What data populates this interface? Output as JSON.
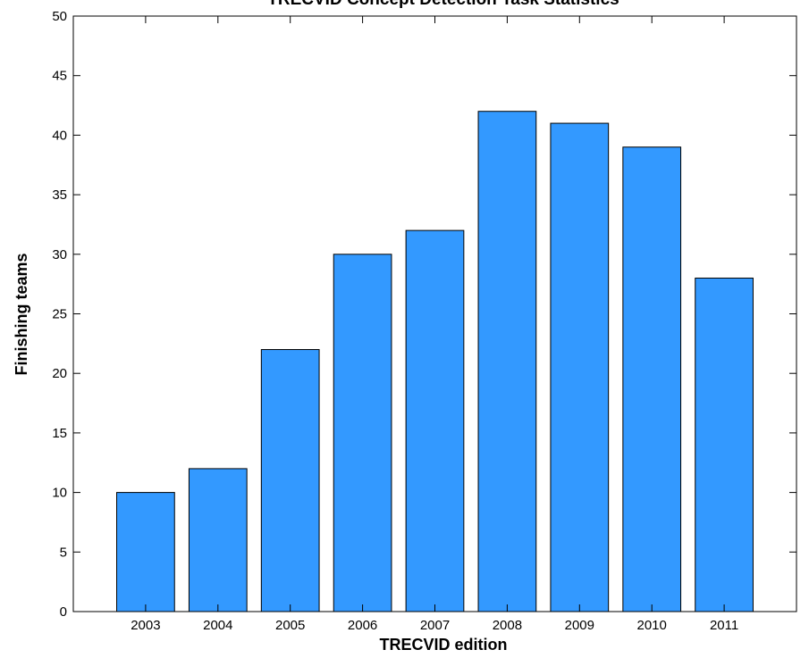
{
  "chart_data": {
    "type": "bar",
    "title": "TRECVID Concept Detection Task Statistics",
    "xlabel": "TRECVID edition",
    "ylabel": "Finishing teams",
    "categories": [
      "2003",
      "2004",
      "2005",
      "2006",
      "2007",
      "2008",
      "2009",
      "2010",
      "2011"
    ],
    "values": [
      10,
      12,
      22,
      30,
      32,
      42,
      41,
      39,
      28
    ],
    "ylim": [
      0,
      50
    ],
    "yticks": [
      0,
      5,
      10,
      15,
      20,
      25,
      30,
      35,
      40,
      45,
      50
    ],
    "grid": false,
    "legend": "none",
    "bar_color": "#3399ff",
    "edge_color": "#000000"
  }
}
